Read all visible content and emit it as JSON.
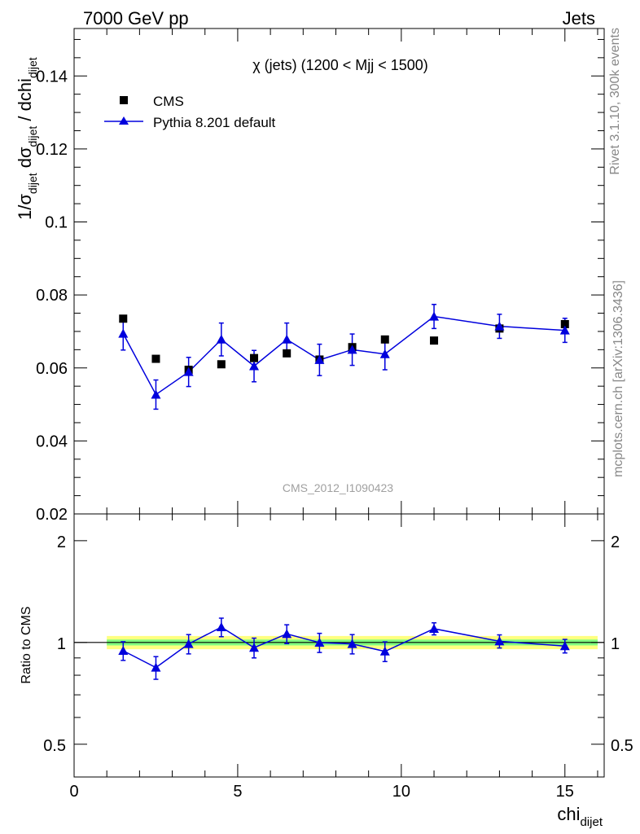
{
  "header": {
    "left": "7000 GeV pp",
    "right": "Jets"
  },
  "side_labels": {
    "rivet": "Rivet 3.1.10,  300k events",
    "mcplots": "mcplots.cern.ch [arXiv:1306.3436]"
  },
  "colors": {
    "data": "#000000",
    "mc": "#0000dd",
    "band_inner": "#80ff80",
    "band_outer": "#ffff80",
    "axis": "#000000",
    "watermark": "#a0a0a0"
  },
  "chart_data": [
    {
      "type": "scatter",
      "title": "χ (jets) (1200 < Mjj < 1500)",
      "ylabel_parts": {
        "a": "1/σ",
        "b": "dijet",
        "c": " dσ",
        "d": "dijet",
        "e": " / dchi",
        "f": "dijet"
      },
      "xlim": [
        0,
        16.2
      ],
      "ylim": [
        0.02,
        0.153
      ],
      "y_ticks": [
        0.02,
        0.04,
        0.06,
        0.08,
        0.1,
        0.12,
        0.14
      ],
      "y_tick_labels": [
        "0.02",
        "0.04",
        "0.06",
        "0.08",
        "0.1",
        "0.12",
        "0.14"
      ],
      "watermark": "CMS_2012_I1090423",
      "legend": {
        "position": "top-left",
        "entries": [
          "CMS",
          "Pythia 8.201 default"
        ]
      },
      "series": [
        {
          "name": "CMS",
          "marker": "square",
          "x": [
            1.5,
            2.5,
            3.5,
            4.5,
            5.5,
            6.5,
            7.5,
            8.5,
            9.5,
            11,
            13,
            15
          ],
          "y": [
            0.0735,
            0.0625,
            0.0595,
            0.061,
            0.0627,
            0.064,
            0.0623,
            0.0657,
            0.0678,
            0.0675,
            0.0708,
            0.072
          ],
          "err": [
            0.0005,
            0.0005,
            0.0005,
            0.0005,
            0.0005,
            0.0005,
            0.0005,
            0.0005,
            0.0005,
            0.0005,
            0.0012,
            0.0013
          ]
        },
        {
          "name": "Pythia 8.201 default",
          "marker": "triangle",
          "x": [
            1.5,
            2.5,
            3.5,
            4.5,
            5.5,
            6.5,
            7.5,
            8.5,
            9.5,
            11,
            13,
            15
          ],
          "y": [
            0.0694,
            0.0527,
            0.0589,
            0.0678,
            0.0605,
            0.0678,
            0.0622,
            0.065,
            0.0638,
            0.0741,
            0.0714,
            0.0703
          ],
          "err": [
            0.0045,
            0.004,
            0.004,
            0.0045,
            0.0043,
            0.0045,
            0.0043,
            0.0043,
            0.0043,
            0.0033,
            0.0033,
            0.0033
          ]
        }
      ]
    },
    {
      "type": "scatter",
      "ylabel": "Ratio to CMS",
      "xlabel_main": "chi",
      "xlabel_sub": "dijet",
      "xlim": [
        0,
        16.2
      ],
      "ylim": [
        0.4,
        2.4
      ],
      "log_y": true,
      "y_ticks": [
        0.5,
        1,
        2
      ],
      "y_tick_labels": [
        "0.5",
        "1",
        "2"
      ],
      "x_ticks": [
        0,
        5,
        10,
        15
      ],
      "x_tick_labels": [
        "0",
        "5",
        "10",
        "15"
      ],
      "band": {
        "x_range": [
          1,
          16
        ],
        "inner": 0.02,
        "outer": 0.045
      },
      "series": [
        {
          "name": "Pythia 8.201 default",
          "x": [
            1.5,
            2.5,
            3.5,
            4.5,
            5.5,
            6.5,
            7.5,
            8.5,
            9.5,
            11,
            13,
            15
          ],
          "y": [
            0.945,
            0.843,
            0.99,
            1.11,
            0.965,
            1.06,
            0.999,
            0.99,
            0.941,
            1.098,
            1.008,
            0.976
          ],
          "err": [
            0.06,
            0.065,
            0.065,
            0.07,
            0.065,
            0.068,
            0.065,
            0.065,
            0.063,
            0.045,
            0.045,
            0.045
          ]
        }
      ]
    }
  ]
}
